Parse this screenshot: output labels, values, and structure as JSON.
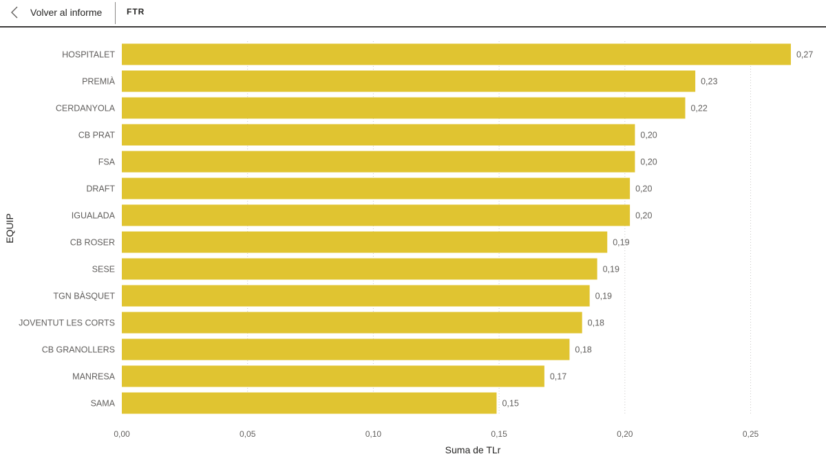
{
  "header": {
    "back_label": "Volver al informe",
    "title": "FTR"
  },
  "chart_data": {
    "type": "bar",
    "orientation": "horizontal",
    "categories": [
      "HOSPITALET",
      "PREMIÀ",
      "CERDANYOLA",
      "CB PRAT",
      "FSA",
      "DRAFT",
      "IGUALADA",
      "CB ROSER",
      "SESE",
      "TGN BÀSQUET",
      "JOVENTUT LES CORTS",
      "CB GRANOLLERS",
      "MANRESA",
      "SAMA"
    ],
    "values": [
      0.266,
      0.228,
      0.224,
      0.204,
      0.204,
      0.202,
      0.202,
      0.193,
      0.189,
      0.186,
      0.183,
      0.178,
      0.168,
      0.149
    ],
    "data_labels": [
      "0,27",
      "0,23",
      "0,22",
      "0,20",
      "0,20",
      "0,20",
      "0,20",
      "0,19",
      "0,19",
      "0,19",
      "0,18",
      "0,18",
      "0,17",
      "0,15"
    ],
    "xlabel": "Suma de TLr",
    "ylabel": "EQUIP",
    "xlim": [
      0,
      0.27
    ],
    "x_ticks": [
      0,
      0.05,
      0.1,
      0.15,
      0.2,
      0.25
    ],
    "x_tick_labels": [
      "0,00",
      "0,05",
      "0,10",
      "0,15",
      "0,20",
      "0,25"
    ],
    "grid": "vertical dotted",
    "bar_color": "#E0C431"
  }
}
